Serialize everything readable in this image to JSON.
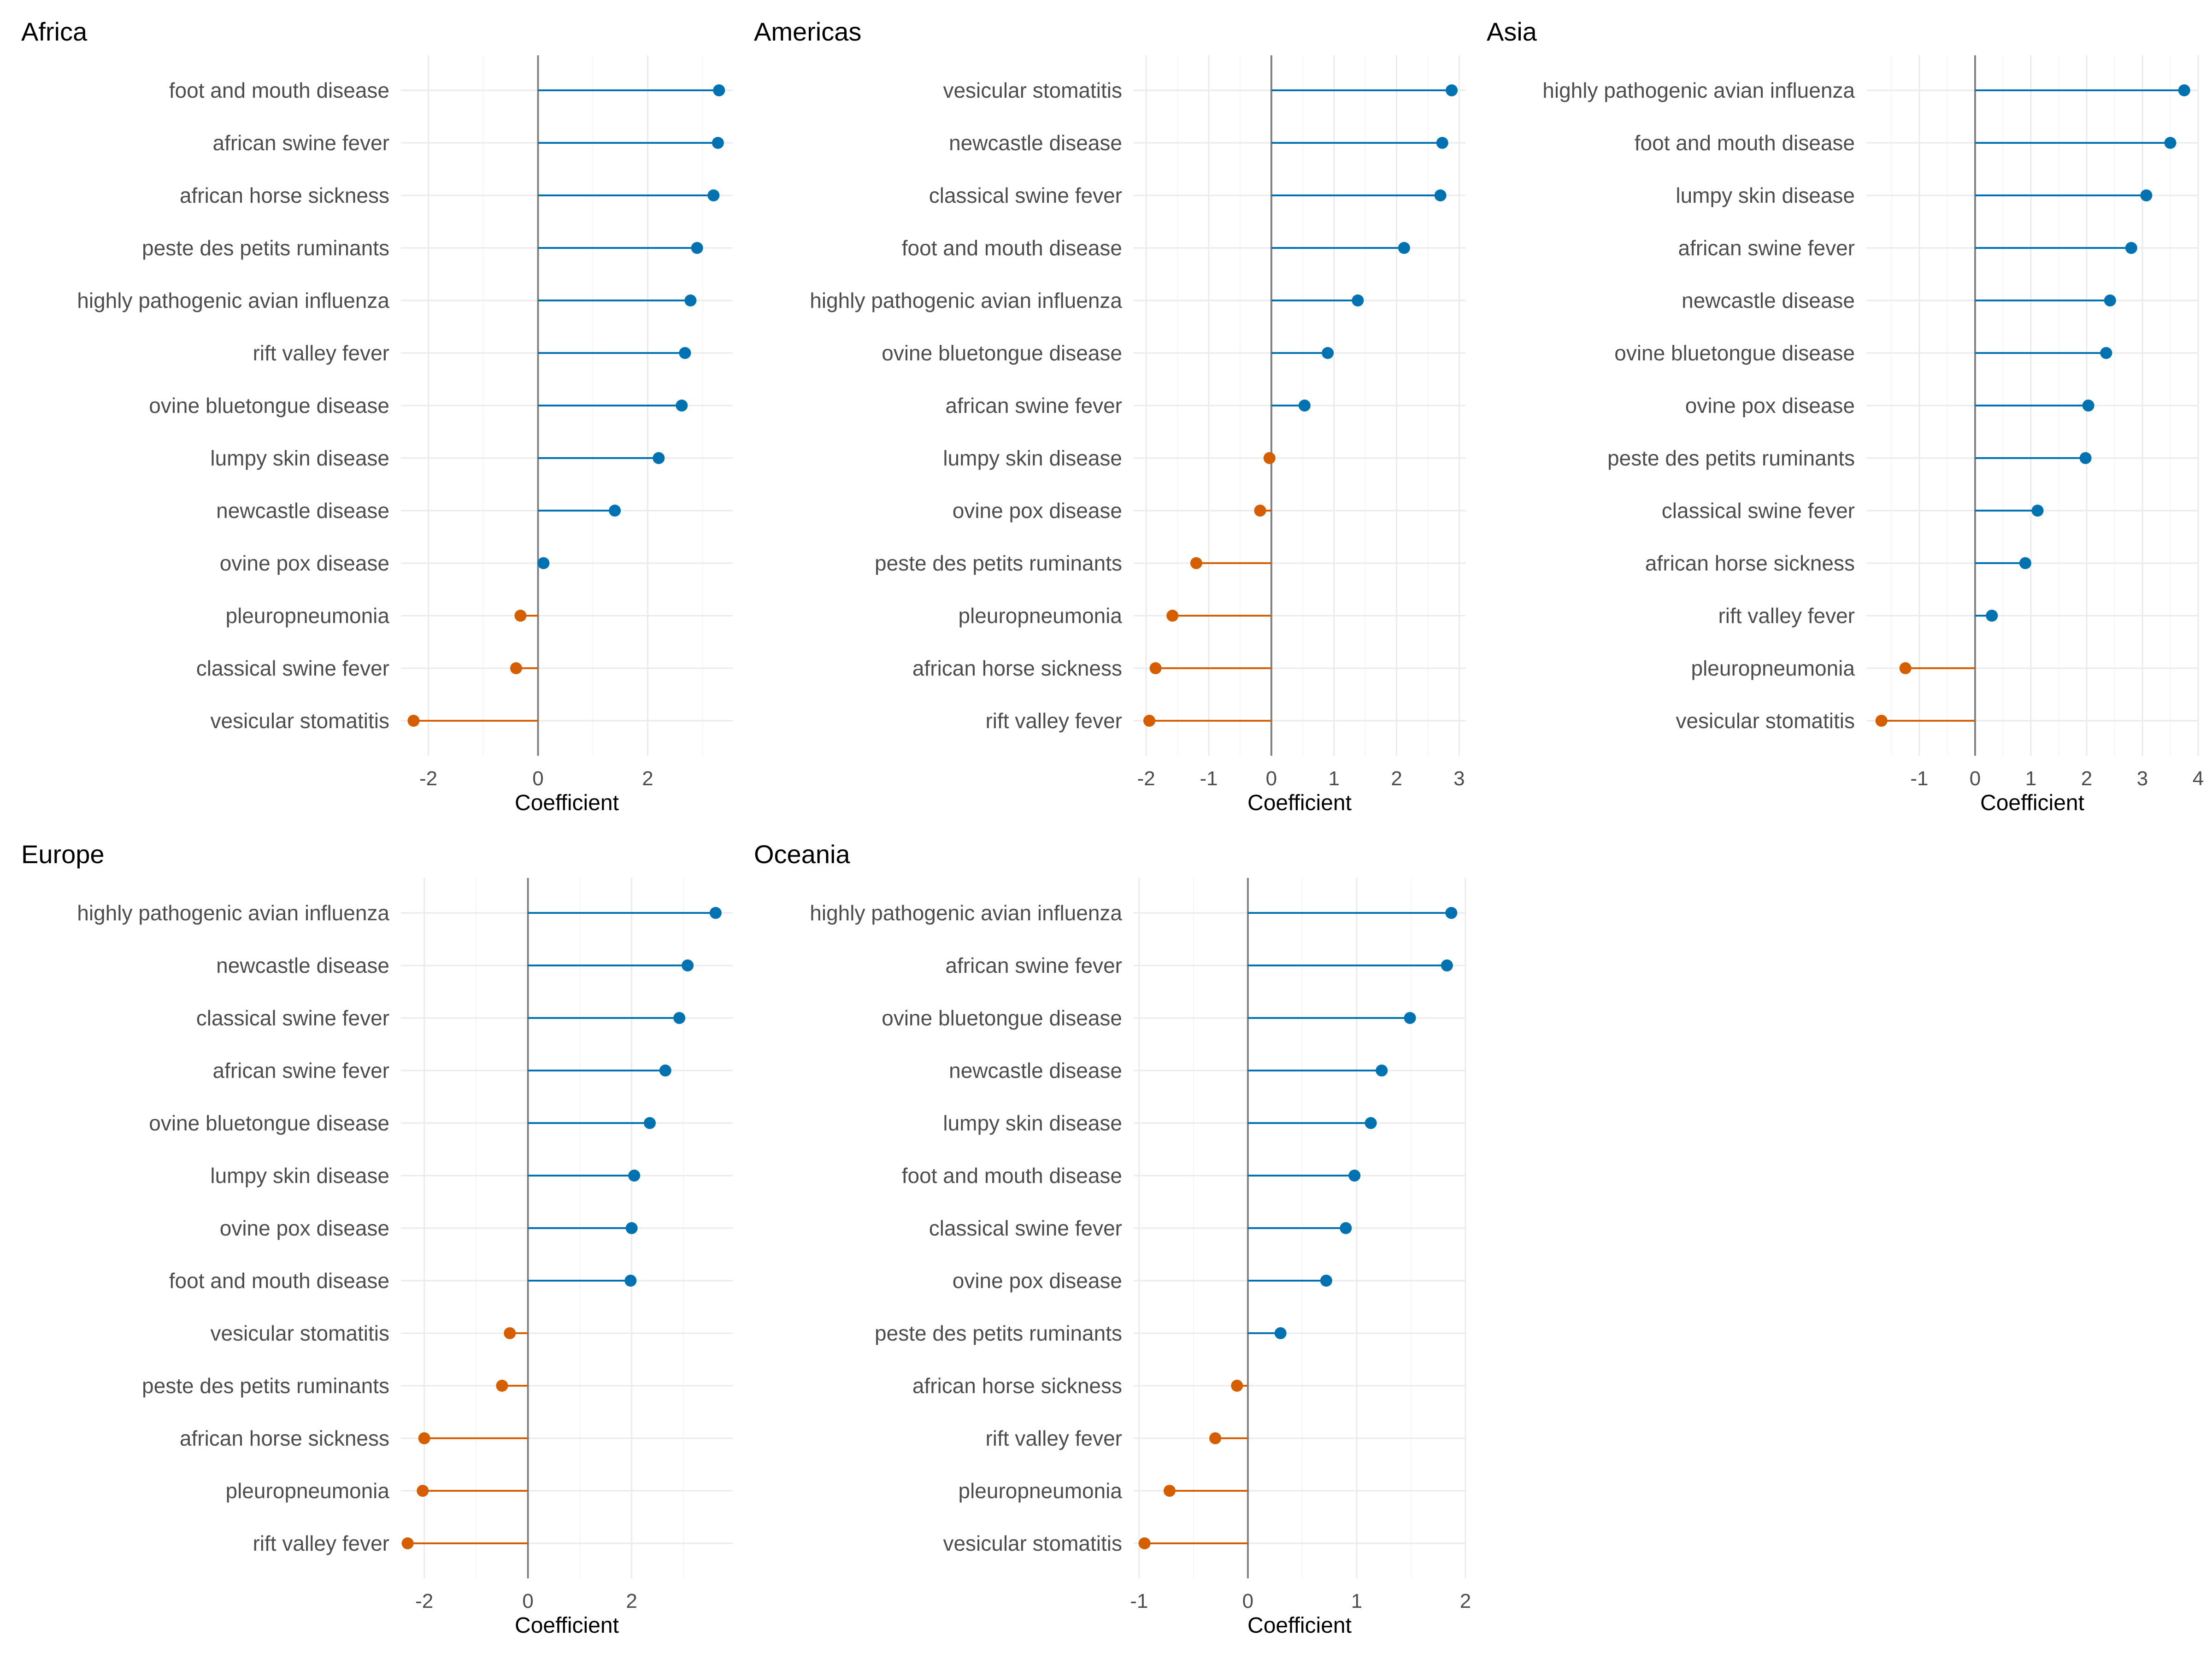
{
  "colors": {
    "positive": "#0072B2",
    "negative": "#D55E00",
    "zero_line": "#808080",
    "grid_major": "#ebebeb",
    "grid_minor": "#f5f5f5"
  },
  "chart_data": [
    {
      "type": "lollipop",
      "title": "Africa",
      "xlabel": "Coefficient",
      "xlim": [
        -2.5,
        3.55
      ],
      "xticks": [
        -2,
        0,
        2
      ],
      "grid": true,
      "categories": [
        "foot and mouth disease",
        "african swine fever",
        "african horse sickness",
        "peste des petits ruminants",
        "highly pathogenic avian influenza",
        "rift valley fever",
        "ovine bluetongue disease",
        "lumpy skin disease",
        "newcastle disease",
        "ovine pox disease",
        "pleuropneumonia",
        "classical swine fever",
        "vesicular stomatitis"
      ],
      "values": [
        3.3,
        3.28,
        3.2,
        2.9,
        2.78,
        2.68,
        2.62,
        2.2,
        1.4,
        0.1,
        -0.32,
        -0.4,
        -2.27
      ]
    },
    {
      "type": "lollipop",
      "title": "Americas",
      "xlabel": "Coefficient",
      "xlim": [
        -2.2,
        3.1
      ],
      "xticks": [
        -2,
        -1,
        0,
        1,
        2,
        3
      ],
      "grid": true,
      "categories": [
        "vesicular stomatitis",
        "newcastle disease",
        "classical swine fever",
        "foot and mouth disease",
        "highly pathogenic avian influenza",
        "ovine bluetongue disease",
        "african swine fever",
        "lumpy skin disease",
        "ovine pox disease",
        "peste des petits ruminants",
        "pleuropneumonia",
        "african horse sickness",
        "rift valley fever"
      ],
      "values": [
        2.88,
        2.73,
        2.7,
        2.12,
        1.38,
        0.9,
        0.53,
        -0.03,
        -0.18,
        -1.2,
        -1.58,
        -1.85,
        -1.95
      ]
    },
    {
      "type": "lollipop",
      "title": "Asia",
      "xlabel": "Coefficient",
      "xlim": [
        -1.95,
        4.0
      ],
      "xticks": [
        -1,
        0,
        1,
        2,
        3,
        4
      ],
      "grid": true,
      "categories": [
        "highly pathogenic avian influenza",
        "foot and mouth disease",
        "lumpy skin disease",
        "african swine fever",
        "newcastle disease",
        "ovine bluetongue disease",
        "ovine pox disease",
        "peste des petits ruminants",
        "classical swine fever",
        "african horse sickness",
        "rift valley fever",
        "pleuropneumonia",
        "vesicular stomatitis"
      ],
      "values": [
        3.75,
        3.5,
        3.07,
        2.8,
        2.42,
        2.35,
        2.03,
        1.98,
        1.12,
        0.9,
        0.3,
        -1.25,
        -1.68
      ]
    },
    {
      "type": "lollipop",
      "title": "Europe",
      "xlabel": "Coefficient",
      "xlim": [
        -2.45,
        3.95
      ],
      "xticks": [
        -2,
        0,
        2
      ],
      "grid": true,
      "categories": [
        "highly pathogenic avian influenza",
        "newcastle disease",
        "classical swine fever",
        "african swine fever",
        "ovine bluetongue disease",
        "lumpy skin disease",
        "ovine pox disease",
        "foot and mouth disease",
        "vesicular stomatitis",
        "peste des petits ruminants",
        "african horse sickness",
        "pleuropneumonia",
        "rift valley fever"
      ],
      "values": [
        3.62,
        3.08,
        2.92,
        2.65,
        2.35,
        2.05,
        2.0,
        1.98,
        -0.35,
        -0.5,
        -2.0,
        -2.03,
        -2.32
      ]
    },
    {
      "type": "lollipop",
      "title": "Oceania",
      "xlabel": "Coefficient",
      "xlim": [
        -1.05,
        2.0
      ],
      "xticks": [
        -1,
        0,
        1,
        2
      ],
      "grid": true,
      "categories": [
        "highly pathogenic avian influenza",
        "african swine fever",
        "ovine bluetongue disease",
        "newcastle disease",
        "lumpy skin disease",
        "foot and mouth disease",
        "classical swine fever",
        "ovine pox disease",
        "peste des petits ruminants",
        "african horse sickness",
        "rift valley fever",
        "pleuropneumonia",
        "vesicular stomatitis"
      ],
      "values": [
        1.87,
        1.83,
        1.49,
        1.23,
        1.13,
        0.98,
        0.9,
        0.72,
        0.3,
        -0.1,
        -0.3,
        -0.72,
        -0.95
      ]
    }
  ]
}
